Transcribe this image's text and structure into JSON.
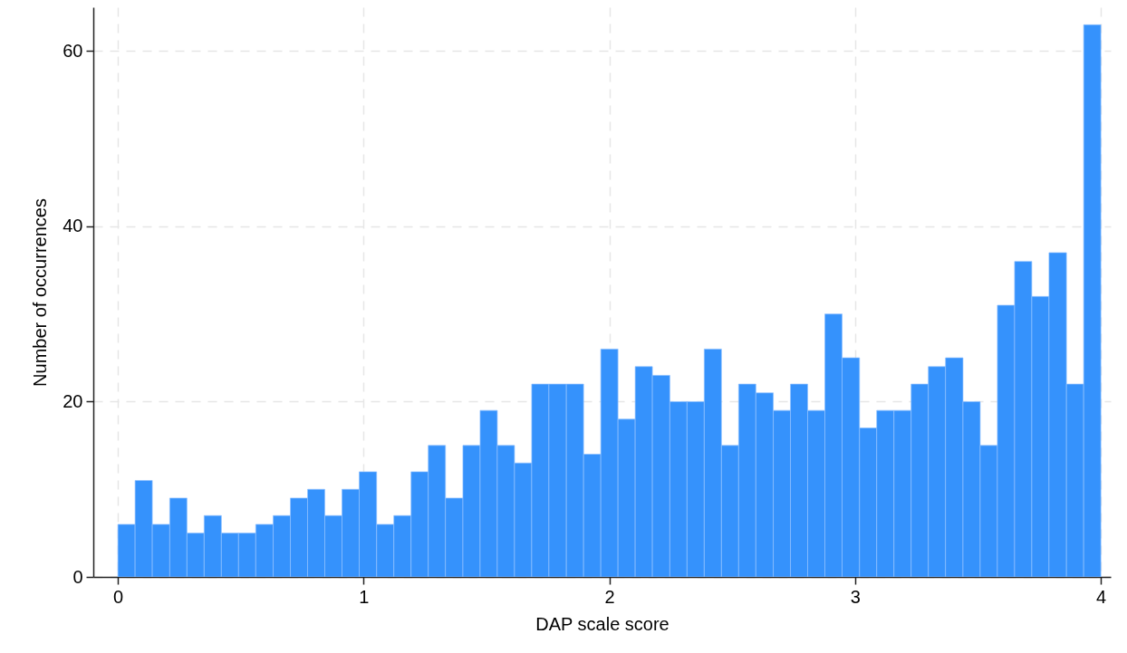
{
  "chart_data": {
    "type": "histogram",
    "xlabel": "DAP scale score",
    "ylabel": "Number of occurrences",
    "color": "#3592fc",
    "bins": [
      0,
      0.07,
      0.14,
      0.211,
      0.281,
      0.351,
      0.421,
      0.491,
      0.561,
      0.632,
      0.702,
      0.772,
      0.842,
      0.912,
      0.982,
      1.053,
      1.123,
      1.193,
      1.263,
      1.333,
      1.404,
      1.474,
      1.544,
      1.614,
      1.684,
      1.754,
      1.825,
      1.895,
      1.965,
      2.035,
      2.105,
      2.175,
      2.246,
      2.316,
      2.386,
      2.456,
      2.526,
      2.596,
      2.667,
      2.737,
      2.807,
      2.877,
      2.947,
      3.018,
      3.088,
      3.158,
      3.228,
      3.298,
      3.368,
      3.439,
      3.509,
      3.579,
      3.649,
      3.719,
      3.789,
      3.86,
      3.93,
      4
    ],
    "values": [
      6,
      11,
      6,
      9,
      5,
      7,
      5,
      5,
      6,
      7,
      9,
      10,
      7,
      10,
      12,
      6,
      7,
      12,
      15,
      9,
      15,
      19,
      15,
      13,
      22,
      22,
      22,
      14,
      26,
      18,
      24,
      23,
      20,
      20,
      26,
      15,
      22,
      21,
      19,
      22,
      19,
      30,
      25,
      17,
      19,
      19,
      22,
      24,
      25,
      20,
      15,
      31,
      36,
      32,
      37,
      22,
      63
    ],
    "xlim": [
      -0.1,
      4.04
    ],
    "ylim": [
      0,
      65
    ],
    "xticks": [
      0,
      1,
      2,
      3,
      4
    ],
    "yticks": [
      0,
      20,
      40,
      60
    ],
    "grid": true
  }
}
